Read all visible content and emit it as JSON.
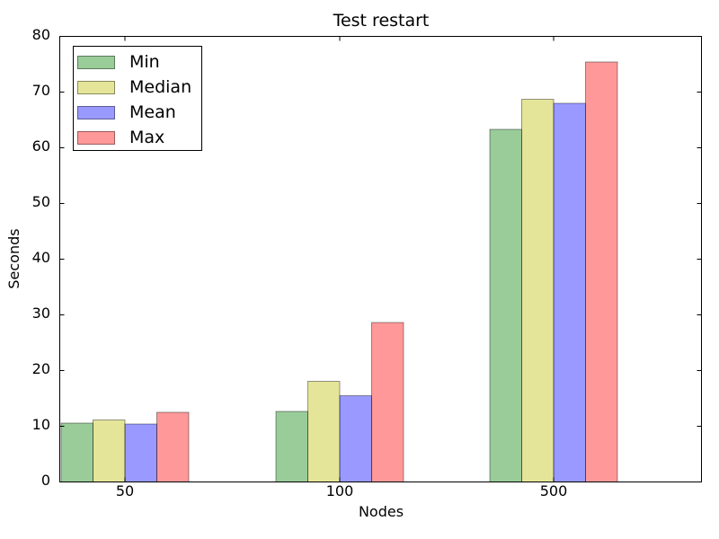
{
  "chart_data": {
    "type": "bar",
    "title": "Test restart",
    "xlabel": "Nodes",
    "ylabel": "Seconds",
    "categories": [
      "50",
      "100",
      "500"
    ],
    "series": [
      {
        "name": "Min",
        "color": "#008000",
        "values": [
          10.6,
          12.7,
          63.3
        ]
      },
      {
        "name": "Median",
        "color": "#bfbf00",
        "values": [
          11.1,
          18.1,
          68.7
        ]
      },
      {
        "name": "Mean",
        "color": "#0000ff",
        "values": [
          10.4,
          15.5,
          68.0
        ]
      },
      {
        "name": "Max",
        "color": "#ff0000",
        "values": [
          12.5,
          28.6,
          75.4
        ]
      }
    ],
    "ylim": [
      0,
      80
    ],
    "yticks": [
      0,
      10,
      20,
      30,
      40,
      50,
      60,
      70,
      80
    ],
    "fill_opacity": 0.4,
    "axis_color": "#000000",
    "grid": false,
    "legend_position": "upper-left"
  }
}
